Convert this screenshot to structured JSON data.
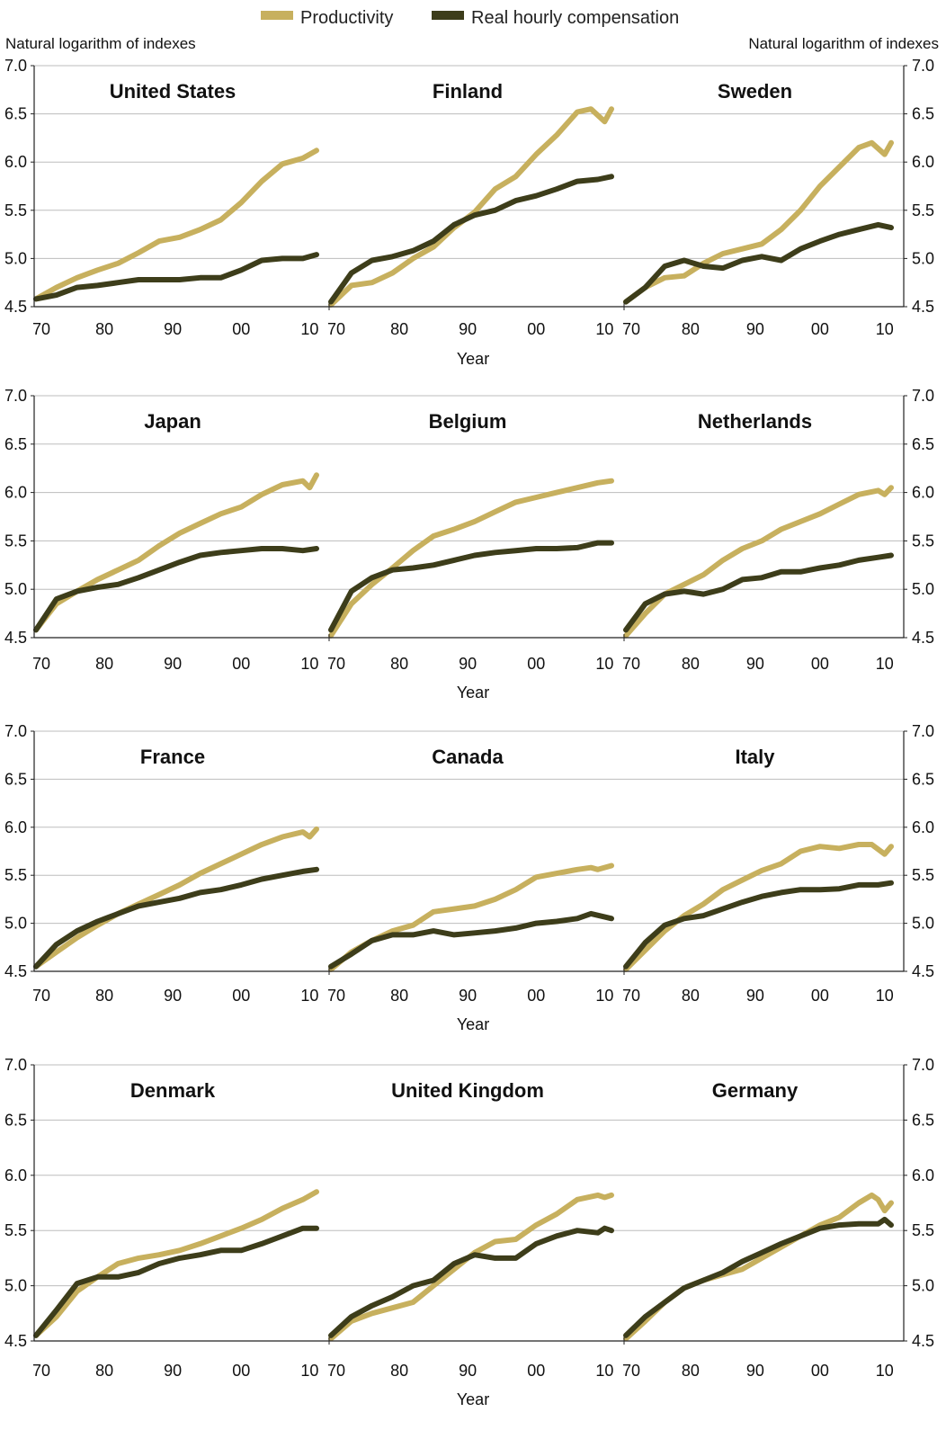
{
  "legend": [
    {
      "name": "Productivity",
      "color": "#c7b05e"
    },
    {
      "name": "Real hourly compensation",
      "color": "#3d3d1a"
    }
  ],
  "ylabel_left": "Natural logarithm of indexes",
  "ylabel_right": "Natural logarithm of indexes",
  "xlabel": "Year",
  "ytick_labels": [
    "4.5",
    "5.0",
    "5.5",
    "6.0",
    "6.5",
    "7.0"
  ],
  "xtick_labels": [
    "70",
    "80",
    "90",
    "00",
    "10"
  ],
  "chart_data": [
    {
      "type": "line",
      "title": "United States",
      "xlim": [
        1970,
        2011
      ],
      "ylim": [
        4.5,
        7.0
      ],
      "series": [
        {
          "name": "Productivity",
          "x": [
            1970,
            1973,
            1976,
            1979,
            1982,
            1985,
            1988,
            1991,
            1994,
            1997,
            2000,
            2003,
            2006,
            2009,
            2011
          ],
          "y": [
            4.58,
            4.7,
            4.8,
            4.88,
            4.95,
            5.06,
            5.18,
            5.22,
            5.3,
            5.4,
            5.58,
            5.8,
            5.98,
            6.04,
            6.12
          ]
        },
        {
          "name": "Real hourly compensation",
          "x": [
            1970,
            1973,
            1976,
            1979,
            1982,
            1985,
            1988,
            1991,
            1994,
            1997,
            2000,
            2003,
            2006,
            2009,
            2011
          ],
          "y": [
            4.58,
            4.62,
            4.7,
            4.72,
            4.75,
            4.78,
            4.78,
            4.78,
            4.8,
            4.8,
            4.88,
            4.98,
            5.0,
            5.0,
            5.04
          ]
        }
      ]
    },
    {
      "type": "line",
      "title": "Finland",
      "xlim": [
        1970,
        2011
      ],
      "ylim": [
        4.5,
        7.0
      ],
      "series": [
        {
          "name": "Productivity",
          "x": [
            1970,
            1973,
            1976,
            1979,
            1982,
            1985,
            1988,
            1991,
            1994,
            1997,
            2000,
            2003,
            2006,
            2008,
            2010,
            2011
          ],
          "y": [
            4.52,
            4.72,
            4.75,
            4.85,
            5.0,
            5.12,
            5.32,
            5.48,
            5.72,
            5.85,
            6.08,
            6.28,
            6.52,
            6.55,
            6.42,
            6.55
          ]
        },
        {
          "name": "Real hourly compensation",
          "x": [
            1970,
            1973,
            1976,
            1979,
            1982,
            1985,
            1988,
            1991,
            1994,
            1997,
            2000,
            2003,
            2006,
            2009,
            2011
          ],
          "y": [
            4.55,
            4.85,
            4.98,
            5.02,
            5.08,
            5.18,
            5.35,
            5.45,
            5.5,
            5.6,
            5.65,
            5.72,
            5.8,
            5.82,
            5.85
          ]
        }
      ]
    },
    {
      "type": "line",
      "title": "Sweden",
      "xlim": [
        1970,
        2011
      ],
      "ylim": [
        4.5,
        7.0
      ],
      "series": [
        {
          "name": "Productivity",
          "x": [
            1970,
            1973,
            1976,
            1979,
            1982,
            1985,
            1988,
            1991,
            1994,
            1997,
            2000,
            2003,
            2006,
            2008,
            2010,
            2011
          ],
          "y": [
            4.55,
            4.7,
            4.8,
            4.82,
            4.95,
            5.05,
            5.1,
            5.15,
            5.3,
            5.5,
            5.75,
            5.95,
            6.15,
            6.2,
            6.08,
            6.2
          ]
        },
        {
          "name": "Real hourly compensation",
          "x": [
            1970,
            1973,
            1976,
            1979,
            1982,
            1985,
            1988,
            1991,
            1994,
            1997,
            2000,
            2003,
            2006,
            2009,
            2011
          ],
          "y": [
            4.55,
            4.7,
            4.92,
            4.98,
            4.92,
            4.9,
            4.98,
            5.02,
            4.98,
            5.1,
            5.18,
            5.25,
            5.3,
            5.35,
            5.32
          ]
        }
      ]
    },
    {
      "type": "line",
      "title": "Japan",
      "xlim": [
        1970,
        2011
      ],
      "ylim": [
        4.5,
        7.0
      ],
      "series": [
        {
          "name": "Productivity",
          "x": [
            1970,
            1973,
            1976,
            1979,
            1982,
            1985,
            1988,
            1991,
            1994,
            1997,
            2000,
            2003,
            2006,
            2009,
            2010,
            2011
          ],
          "y": [
            4.58,
            4.85,
            4.98,
            5.1,
            5.2,
            5.3,
            5.45,
            5.58,
            5.68,
            5.78,
            5.85,
            5.98,
            6.08,
            6.12,
            6.05,
            6.18
          ]
        },
        {
          "name": "Real hourly compensation",
          "x": [
            1970,
            1973,
            1976,
            1979,
            1982,
            1985,
            1988,
            1991,
            1994,
            1997,
            2000,
            2003,
            2006,
            2009,
            2011
          ],
          "y": [
            4.58,
            4.9,
            4.98,
            5.02,
            5.05,
            5.12,
            5.2,
            5.28,
            5.35,
            5.38,
            5.4,
            5.42,
            5.42,
            5.4,
            5.42
          ]
        }
      ]
    },
    {
      "type": "line",
      "title": "Belgium",
      "xlim": [
        1970,
        2011
      ],
      "ylim": [
        4.5,
        7.0
      ],
      "series": [
        {
          "name": "Productivity",
          "x": [
            1970,
            1973,
            1976,
            1979,
            1982,
            1985,
            1988,
            1991,
            1994,
            1997,
            2000,
            2003,
            2006,
            2009,
            2011
          ],
          "y": [
            4.52,
            4.85,
            5.05,
            5.22,
            5.4,
            5.55,
            5.62,
            5.7,
            5.8,
            5.9,
            5.95,
            6.0,
            6.05,
            6.1,
            6.12
          ]
        },
        {
          "name": "Real hourly compensation",
          "x": [
            1970,
            1973,
            1976,
            1979,
            1982,
            1985,
            1988,
            1991,
            1994,
            1997,
            2000,
            2003,
            2006,
            2009,
            2011
          ],
          "y": [
            4.58,
            4.98,
            5.12,
            5.2,
            5.22,
            5.25,
            5.3,
            5.35,
            5.38,
            5.4,
            5.42,
            5.42,
            5.43,
            5.48,
            5.48
          ]
        }
      ]
    },
    {
      "type": "line",
      "title": "Netherlands",
      "xlim": [
        1970,
        2011
      ],
      "ylim": [
        4.5,
        7.0
      ],
      "series": [
        {
          "name": "Productivity",
          "x": [
            1970,
            1973,
            1976,
            1979,
            1982,
            1985,
            1988,
            1991,
            1994,
            1997,
            2000,
            2003,
            2006,
            2009,
            2010,
            2011
          ],
          "y": [
            4.52,
            4.75,
            4.95,
            5.05,
            5.15,
            5.3,
            5.42,
            5.5,
            5.62,
            5.7,
            5.78,
            5.88,
            5.98,
            6.02,
            5.98,
            6.05
          ]
        },
        {
          "name": "Real hourly compensation",
          "x": [
            1970,
            1973,
            1976,
            1979,
            1982,
            1985,
            1988,
            1991,
            1994,
            1997,
            2000,
            2003,
            2006,
            2009,
            2011
          ],
          "y": [
            4.58,
            4.85,
            4.95,
            4.98,
            4.95,
            5.0,
            5.1,
            5.12,
            5.18,
            5.18,
            5.22,
            5.25,
            5.3,
            5.33,
            5.35
          ]
        }
      ]
    },
    {
      "type": "line",
      "title": "France",
      "xlim": [
        1970,
        2011
      ],
      "ylim": [
        4.5,
        7.0
      ],
      "series": [
        {
          "name": "Productivity",
          "x": [
            1970,
            1973,
            1976,
            1979,
            1982,
            1985,
            1988,
            1991,
            1994,
            1997,
            2000,
            2003,
            2006,
            2009,
            2010,
            2011
          ],
          "y": [
            4.55,
            4.7,
            4.85,
            4.98,
            5.1,
            5.2,
            5.3,
            5.4,
            5.52,
            5.62,
            5.72,
            5.82,
            5.9,
            5.95,
            5.9,
            5.98
          ]
        },
        {
          "name": "Real hourly compensation",
          "x": [
            1970,
            1973,
            1976,
            1979,
            1982,
            1985,
            1988,
            1991,
            1994,
            1997,
            2000,
            2003,
            2006,
            2009,
            2011
          ],
          "y": [
            4.55,
            4.78,
            4.92,
            5.02,
            5.1,
            5.18,
            5.22,
            5.26,
            5.32,
            5.35,
            5.4,
            5.46,
            5.5,
            5.54,
            5.56
          ]
        }
      ]
    },
    {
      "type": "line",
      "title": "Canada",
      "xlim": [
        1970,
        2011
      ],
      "ylim": [
        4.5,
        7.0
      ],
      "series": [
        {
          "name": "Productivity",
          "x": [
            1970,
            1973,
            1976,
            1979,
            1982,
            1985,
            1988,
            1991,
            1994,
            1997,
            2000,
            2003,
            2006,
            2008,
            2009,
            2011
          ],
          "y": [
            4.52,
            4.7,
            4.82,
            4.92,
            4.98,
            5.12,
            5.15,
            5.18,
            5.25,
            5.35,
            5.48,
            5.52,
            5.56,
            5.58,
            5.56,
            5.6
          ]
        },
        {
          "name": "Real hourly compensation",
          "x": [
            1970,
            1973,
            1976,
            1979,
            1982,
            1985,
            1988,
            1991,
            1994,
            1997,
            2000,
            2003,
            2006,
            2008,
            2011
          ],
          "y": [
            4.55,
            4.68,
            4.82,
            4.88,
            4.88,
            4.92,
            4.88,
            4.9,
            4.92,
            4.95,
            5.0,
            5.02,
            5.05,
            5.1,
            5.05
          ]
        }
      ]
    },
    {
      "type": "line",
      "title": "Italy",
      "xlim": [
        1970,
        2011
      ],
      "ylim": [
        4.5,
        7.0
      ],
      "series": [
        {
          "name": "Productivity",
          "x": [
            1970,
            1973,
            1976,
            1979,
            1982,
            1985,
            1988,
            1991,
            1994,
            1997,
            2000,
            2003,
            2006,
            2008,
            2010,
            2011
          ],
          "y": [
            4.52,
            4.72,
            4.92,
            5.08,
            5.2,
            5.35,
            5.45,
            5.55,
            5.62,
            5.75,
            5.8,
            5.78,
            5.82,
            5.82,
            5.72,
            5.8
          ]
        },
        {
          "name": "Real hourly compensation",
          "x": [
            1970,
            1973,
            1976,
            1979,
            1982,
            1985,
            1988,
            1991,
            1994,
            1997,
            2000,
            2003,
            2006,
            2009,
            2011
          ],
          "y": [
            4.55,
            4.8,
            4.98,
            5.05,
            5.08,
            5.15,
            5.22,
            5.28,
            5.32,
            5.35,
            5.35,
            5.36,
            5.4,
            5.4,
            5.42
          ]
        }
      ]
    },
    {
      "type": "line",
      "title": "Denmark",
      "xlim": [
        1970,
        2011
      ],
      "ylim": [
        4.5,
        7.0
      ],
      "series": [
        {
          "name": "Productivity",
          "x": [
            1970,
            1973,
            1976,
            1979,
            1982,
            1985,
            1988,
            1991,
            1994,
            1997,
            2000,
            2003,
            2006,
            2009,
            2011
          ],
          "y": [
            4.55,
            4.72,
            4.95,
            5.08,
            5.2,
            5.25,
            5.28,
            5.32,
            5.38,
            5.45,
            5.52,
            5.6,
            5.7,
            5.78,
            5.85
          ]
        },
        {
          "name": "Real hourly compensation",
          "x": [
            1970,
            1973,
            1976,
            1979,
            1982,
            1985,
            1988,
            1991,
            1994,
            1997,
            2000,
            2003,
            2006,
            2009,
            2011
          ],
          "y": [
            4.55,
            4.78,
            5.02,
            5.08,
            5.08,
            5.12,
            5.2,
            5.25,
            5.28,
            5.32,
            5.32,
            5.38,
            5.45,
            5.52,
            5.52
          ]
        }
      ]
    },
    {
      "type": "line",
      "title": "United Kingdom",
      "xlim": [
        1970,
        2011
      ],
      "ylim": [
        4.5,
        7.0
      ],
      "series": [
        {
          "name": "Productivity",
          "x": [
            1970,
            1973,
            1976,
            1979,
            1982,
            1985,
            1988,
            1991,
            1994,
            1997,
            2000,
            2003,
            2006,
            2009,
            2010,
            2011
          ],
          "y": [
            4.52,
            4.68,
            4.75,
            4.8,
            4.85,
            5.0,
            5.15,
            5.3,
            5.4,
            5.42,
            5.55,
            5.65,
            5.78,
            5.82,
            5.8,
            5.82
          ]
        },
        {
          "name": "Real hourly compensation",
          "x": [
            1970,
            1973,
            1976,
            1979,
            1982,
            1985,
            1988,
            1991,
            1994,
            1997,
            2000,
            2003,
            2006,
            2009,
            2010,
            2011
          ],
          "y": [
            4.55,
            4.72,
            4.82,
            4.9,
            5.0,
            5.05,
            5.2,
            5.28,
            5.25,
            5.25,
            5.38,
            5.45,
            5.5,
            5.48,
            5.52,
            5.5
          ]
        }
      ]
    },
    {
      "type": "line",
      "title": "Germany",
      "xlim": [
        1970,
        2011
      ],
      "ylim": [
        4.5,
        7.0
      ],
      "series": [
        {
          "name": "Productivity",
          "x": [
            1970,
            1973,
            1976,
            1979,
            1982,
            1985,
            1988,
            1991,
            1994,
            1997,
            2000,
            2003,
            2006,
            2008,
            2009,
            2010,
            2011
          ],
          "y": [
            4.52,
            4.68,
            4.85,
            4.98,
            5.05,
            5.1,
            5.15,
            5.25,
            5.35,
            5.45,
            5.55,
            5.62,
            5.75,
            5.82,
            5.78,
            5.68,
            5.75
          ]
        },
        {
          "name": "Real hourly compensation",
          "x": [
            1970,
            1973,
            1976,
            1979,
            1982,
            1985,
            1988,
            1991,
            1994,
            1997,
            2000,
            2003,
            2006,
            2009,
            2010,
            2011
          ],
          "y": [
            4.55,
            4.72,
            4.85,
            4.98,
            5.05,
            5.12,
            5.22,
            5.3,
            5.38,
            5.45,
            5.52,
            5.55,
            5.56,
            5.56,
            5.6,
            5.55
          ]
        }
      ]
    }
  ]
}
